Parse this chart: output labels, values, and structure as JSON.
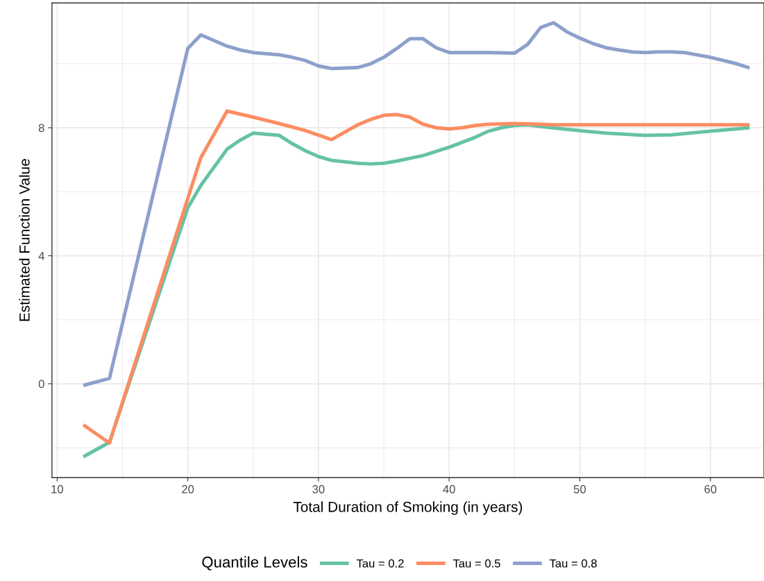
{
  "chart_data": {
    "type": "line",
    "xlabel": "Total Duration of Smoking (in years)",
    "ylabel": "Estimated Function Value",
    "legend_title": "Quantile Levels",
    "legend": "bottom",
    "grid": true,
    "line_style": "solid",
    "marker": "none",
    "xlim": [
      9.6,
      64.1
    ],
    "ylim": [
      -2.93,
      11.9
    ],
    "xticks": [
      10,
      20,
      30,
      40,
      50,
      60
    ],
    "yticks": [
      0,
      4,
      8
    ],
    "series": [
      {
        "name": "Tau = 0.2",
        "color": "#66c2a5",
        "x": [
          12,
          14,
          20,
          21,
          23,
          24,
          25,
          27,
          28,
          29,
          30,
          31,
          33,
          34,
          35,
          36,
          38,
          40,
          42,
          43,
          44,
          45,
          46,
          47,
          50,
          52,
          55,
          57,
          60,
          63
        ],
        "values": [
          -2.28,
          -1.83,
          5.5,
          6.2,
          7.33,
          7.61,
          7.83,
          7.76,
          7.5,
          7.28,
          7.1,
          6.98,
          6.89,
          6.87,
          6.89,
          6.96,
          7.13,
          7.39,
          7.7,
          7.89,
          8.0,
          8.07,
          8.09,
          8.04,
          7.91,
          7.83,
          7.76,
          7.78,
          7.89,
          8.0
        ]
      },
      {
        "name": "Tau = 0.5",
        "color": "#fc8d62",
        "x": [
          12,
          14,
          21,
          23,
          25,
          27,
          29,
          31,
          33,
          34,
          35,
          36,
          37,
          38,
          39,
          40,
          41,
          42,
          43,
          45,
          47,
          48,
          50,
          63
        ],
        "values": [
          -1.28,
          -1.85,
          7.07,
          8.52,
          8.33,
          8.13,
          7.91,
          7.63,
          8.09,
          8.26,
          8.39,
          8.41,
          8.33,
          8.11,
          8.0,
          7.96,
          8.0,
          8.07,
          8.11,
          8.13,
          8.11,
          8.09,
          8.09,
          8.09
        ]
      },
      {
        "name": "Tau = 0.8",
        "color": "#8da0cb",
        "x": [
          12,
          14,
          20,
          21,
          23,
          24,
          25,
          27,
          28,
          29,
          30,
          31,
          33,
          34,
          35,
          36,
          37,
          38,
          39,
          40,
          42,
          43,
          45,
          46,
          47,
          48,
          49,
          50,
          51,
          52,
          53,
          54,
          55,
          56,
          57,
          58,
          60,
          62,
          63
        ],
        "values": [
          -0.05,
          0.17,
          10.48,
          10.9,
          10.55,
          10.43,
          10.35,
          10.28,
          10.2,
          10.1,
          9.93,
          9.85,
          9.88,
          10.0,
          10.2,
          10.48,
          10.78,
          10.78,
          10.5,
          10.35,
          10.35,
          10.35,
          10.33,
          10.6,
          11.13,
          11.28,
          11.0,
          10.8,
          10.63,
          10.5,
          10.43,
          10.37,
          10.35,
          10.37,
          10.37,
          10.35,
          10.2,
          10.0,
          9.87
        ]
      }
    ]
  }
}
